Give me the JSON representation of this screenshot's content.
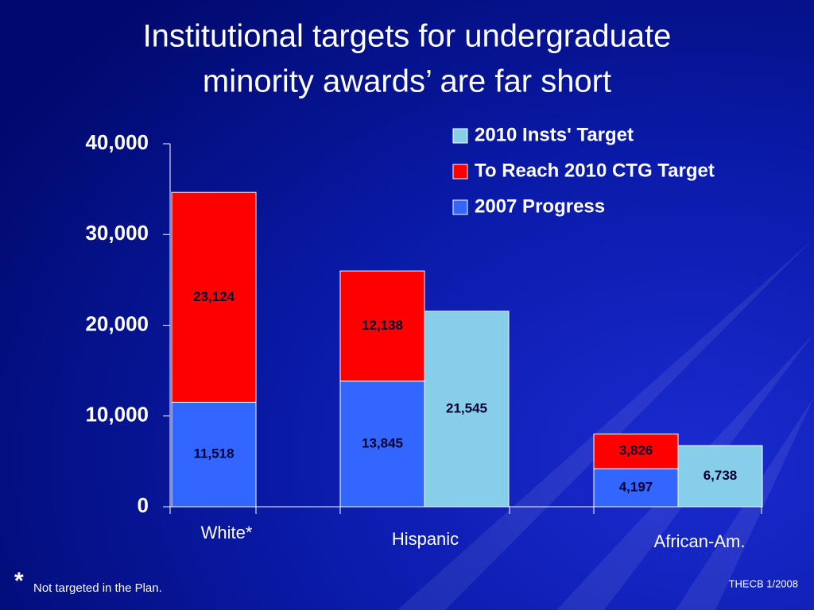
{
  "chart_data": {
    "type": "bar",
    "title": [
      "Institutional targets for undergraduate",
      "minority awards’ are far short"
    ],
    "categories": [
      "White*",
      "Hispanic",
      "African-Am."
    ],
    "series": [
      {
        "name": "2010 Insts' Target",
        "color": "#87ceeb",
        "values": [
          null,
          21545,
          6738
        ],
        "value_labels": [
          null,
          "21,545",
          "6,738"
        ]
      },
      {
        "name": "To Reach 2010 CTG Target",
        "color": "#ff0000",
        "values": [
          23124,
          12138,
          3826
        ],
        "value_labels": [
          "23,124",
          "12,138",
          "3,826"
        ]
      },
      {
        "name": "2007 Progress",
        "color": "#3366ff",
        "values": [
          11518,
          13845,
          4197
        ],
        "value_labels": [
          "11,518",
          "13,845",
          "4,197"
        ]
      }
    ],
    "ylim": [
      0,
      40000
    ],
    "yticks": [
      0,
      {
        "value": 10000,
        "label": "10,000"
      },
      {
        "value": 20000,
        "label": "20,000"
      },
      {
        "value": 30000,
        "label": "30,000"
      },
      {
        "value": 40000,
        "label": "40,000"
      }
    ],
    "legend": "top-right"
  },
  "footnote_mark": "*",
  "footnote": "Not targeted in the Plan.",
  "source": "THECB 1/2008"
}
